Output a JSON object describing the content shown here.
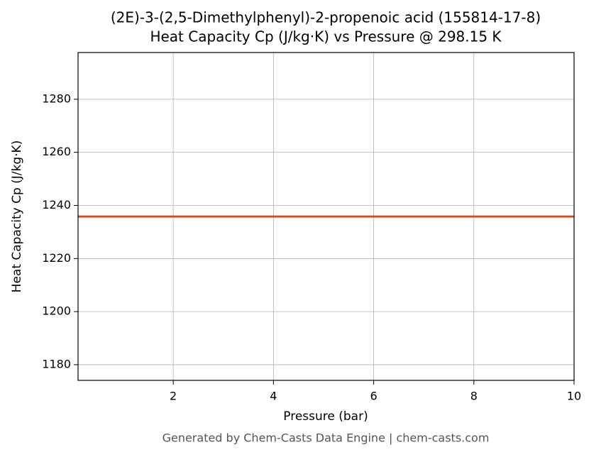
{
  "chart_data": {
    "type": "line",
    "title": "(2E)-3-(2,5-Dimethylphenyl)-2-propenoic acid (155814-17-8)",
    "subtitle": "Heat Capacity Cp (J/kg·K) vs Pressure @ 298.15 K",
    "x_label": "Pressure (bar)",
    "y_label": "Heat Capacity Cp (J/kg·K)",
    "footer": "Generated by Chem-Casts Data Engine | chem-casts.com",
    "x": [
      0.1,
      10
    ],
    "series": [
      {
        "name": "Cp",
        "color": "#cc5527",
        "values": [
          1235.8,
          1235.8
        ]
      }
    ],
    "xlim": [
      0.1,
      10
    ],
    "xticks": [
      2,
      4,
      6,
      8,
      10
    ],
    "ylim": [
      1174.1,
      1297.6
    ],
    "yticks": [
      1180,
      1200,
      1220,
      1240,
      1260,
      1280
    ],
    "grid": true
  }
}
